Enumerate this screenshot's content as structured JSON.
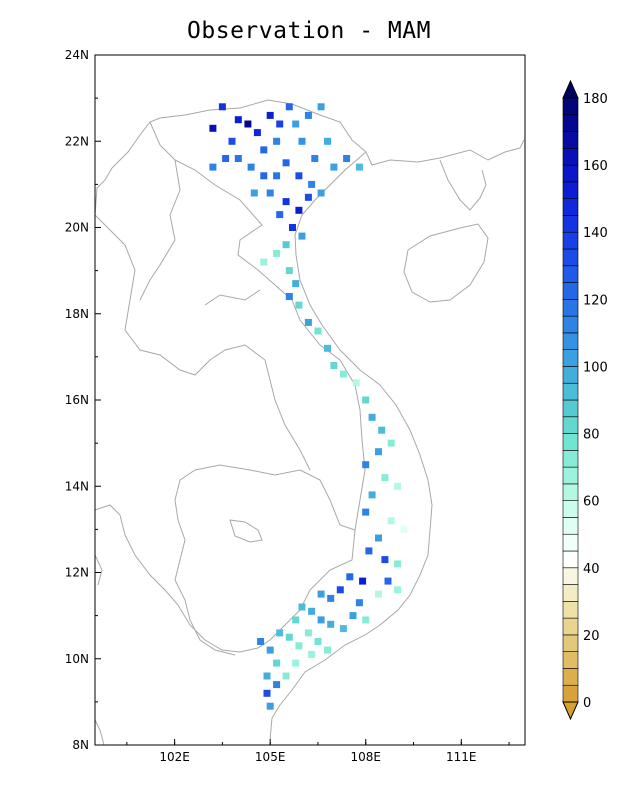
{
  "title": "Observation - MAM",
  "map": {
    "lon_range": [
      99.5,
      113.0
    ],
    "lat_range": [
      8,
      24
    ],
    "y_ticks": [
      "24N",
      "22N",
      "20N",
      "18N",
      "16N",
      "14N",
      "12N",
      "10N",
      "8N"
    ],
    "x_ticks": [
      "102E",
      "105E",
      "108E",
      "111E"
    ],
    "coastline_color": "#a8a8a8",
    "frame_color": "#000000"
  },
  "colorbar": {
    "labels": [
      "180",
      "160",
      "140",
      "120",
      "100",
      "80",
      "60",
      "40",
      "20",
      "0"
    ],
    "min": 0,
    "max": 180,
    "step": 5,
    "colors": [
      "#d8a23a",
      "#dcaf4e",
      "#e0bc63",
      "#e4c879",
      "#e9d590",
      "#eee2a8",
      "#f3ecc4",
      "#f8f5e1",
      "#ffffff",
      "#f0fff9",
      "#e0fff3",
      "#ccfcec",
      "#b4f8e4",
      "#9cf2dc",
      "#86ecd6",
      "#72e4d2",
      "#62d8d0",
      "#56cad2",
      "#4cbcd8",
      "#42aedc",
      "#3aa0e0",
      "#3392e2",
      "#2d84e4",
      "#2876e6",
      "#2468e8",
      "#205ae8",
      "#1c4ce8",
      "#1840e6",
      "#1434e2",
      "#1028dc",
      "#0c1ed4",
      "#0a16c8",
      "#0810b8",
      "#060ca4",
      "#04088e",
      "#020678"
    ],
    "under_color": "#d4a030",
    "over_color": "#000060"
  },
  "chart_data": {
    "type": "scatter",
    "title": "Observation - MAM",
    "xlabel": "",
    "ylabel": "",
    "xlim": [
      99.5,
      113.0
    ],
    "ylim": [
      8,
      24
    ],
    "value_range": [
      0,
      180
    ],
    "stations": [
      [
        103.5,
        22.8,
        140
      ],
      [
        104.0,
        22.5,
        150
      ],
      [
        103.2,
        22.3,
        160
      ],
      [
        103.8,
        22.0,
        130
      ],
      [
        104.3,
        22.4,
        170
      ],
      [
        104.6,
        22.2,
        145
      ],
      [
        105.0,
        22.6,
        150
      ],
      [
        105.3,
        22.4,
        135
      ],
      [
        105.6,
        22.8,
        120
      ],
      [
        105.2,
        22.0,
        110
      ],
      [
        104.8,
        21.8,
        120
      ],
      [
        105.8,
        22.4,
        100
      ],
      [
        106.2,
        22.6,
        110
      ],
      [
        106.6,
        22.8,
        100
      ],
      [
        106.0,
        22.0,
        105
      ],
      [
        106.4,
        21.6,
        110
      ],
      [
        106.8,
        22.0,
        95
      ],
      [
        107.0,
        21.4,
        100
      ],
      [
        107.4,
        21.6,
        110
      ],
      [
        107.8,
        21.4,
        90
      ],
      [
        105.5,
        21.5,
        120
      ],
      [
        105.9,
        21.2,
        130
      ],
      [
        106.3,
        21.0,
        110
      ],
      [
        105.2,
        21.2,
        115
      ],
      [
        104.8,
        21.2,
        120
      ],
      [
        104.4,
        21.4,
        110
      ],
      [
        104.0,
        21.6,
        115
      ],
      [
        103.6,
        21.6,
        120
      ],
      [
        103.2,
        21.4,
        110
      ],
      [
        104.5,
        20.8,
        100
      ],
      [
        105.0,
        20.8,
        110
      ],
      [
        105.5,
        20.6,
        140
      ],
      [
        105.9,
        20.4,
        150
      ],
      [
        106.2,
        20.7,
        130
      ],
      [
        106.6,
        20.8,
        100
      ],
      [
        105.3,
        20.3,
        120
      ],
      [
        105.7,
        20.0,
        140
      ],
      [
        106.0,
        19.8,
        100
      ],
      [
        105.5,
        19.6,
        85
      ],
      [
        105.2,
        19.4,
        70
      ],
      [
        104.8,
        19.2,
        65
      ],
      [
        105.6,
        19.0,
        80
      ],
      [
        105.8,
        18.7,
        95
      ],
      [
        105.6,
        18.4,
        110
      ],
      [
        105.9,
        18.2,
        80
      ],
      [
        106.2,
        17.8,
        100
      ],
      [
        106.5,
        17.6,
        75
      ],
      [
        106.8,
        17.2,
        90
      ],
      [
        107.0,
        16.8,
        80
      ],
      [
        107.3,
        16.6,
        70
      ],
      [
        107.7,
        16.4,
        60
      ],
      [
        108.0,
        16.0,
        80
      ],
      [
        108.2,
        15.6,
        95
      ],
      [
        108.5,
        15.3,
        90
      ],
      [
        108.8,
        15.0,
        70
      ],
      [
        108.4,
        14.8,
        100
      ],
      [
        108.0,
        14.5,
        110
      ],
      [
        108.6,
        14.2,
        70
      ],
      [
        109.0,
        14.0,
        60
      ],
      [
        108.2,
        13.8,
        95
      ],
      [
        108.0,
        13.4,
        110
      ],
      [
        108.8,
        13.2,
        60
      ],
      [
        109.2,
        13.0,
        50
      ],
      [
        108.4,
        12.8,
        100
      ],
      [
        108.1,
        12.5,
        120
      ],
      [
        108.6,
        12.3,
        130
      ],
      [
        109.0,
        12.2,
        70
      ],
      [
        108.7,
        11.8,
        120
      ],
      [
        109.0,
        11.6,
        65
      ],
      [
        108.4,
        11.5,
        60
      ],
      [
        107.9,
        11.8,
        150
      ],
      [
        107.5,
        11.9,
        120
      ],
      [
        107.2,
        11.6,
        130
      ],
      [
        106.9,
        11.4,
        110
      ],
      [
        106.6,
        11.5,
        100
      ],
      [
        107.8,
        11.3,
        110
      ],
      [
        107.6,
        11.0,
        100
      ],
      [
        108.0,
        10.9,
        70
      ],
      [
        107.3,
        10.7,
        90
      ],
      [
        106.9,
        10.8,
        95
      ],
      [
        106.6,
        10.9,
        100
      ],
      [
        106.3,
        11.1,
        95
      ],
      [
        106.0,
        11.2,
        90
      ],
      [
        105.8,
        10.9,
        80
      ],
      [
        106.2,
        10.6,
        70
      ],
      [
        106.5,
        10.4,
        75
      ],
      [
        106.8,
        10.2,
        70
      ],
      [
        106.3,
        10.1,
        65
      ],
      [
        105.9,
        10.3,
        70
      ],
      [
        105.6,
        10.5,
        80
      ],
      [
        105.3,
        10.6,
        90
      ],
      [
        105.0,
        10.2,
        100
      ],
      [
        104.7,
        10.4,
        110
      ],
      [
        105.2,
        9.9,
        80
      ],
      [
        105.5,
        9.6,
        70
      ],
      [
        105.8,
        9.9,
        65
      ],
      [
        105.2,
        9.4,
        110
      ],
      [
        104.9,
        9.2,
        130
      ],
      [
        105.0,
        8.9,
        100
      ],
      [
        104.9,
        9.6,
        95
      ]
    ]
  }
}
